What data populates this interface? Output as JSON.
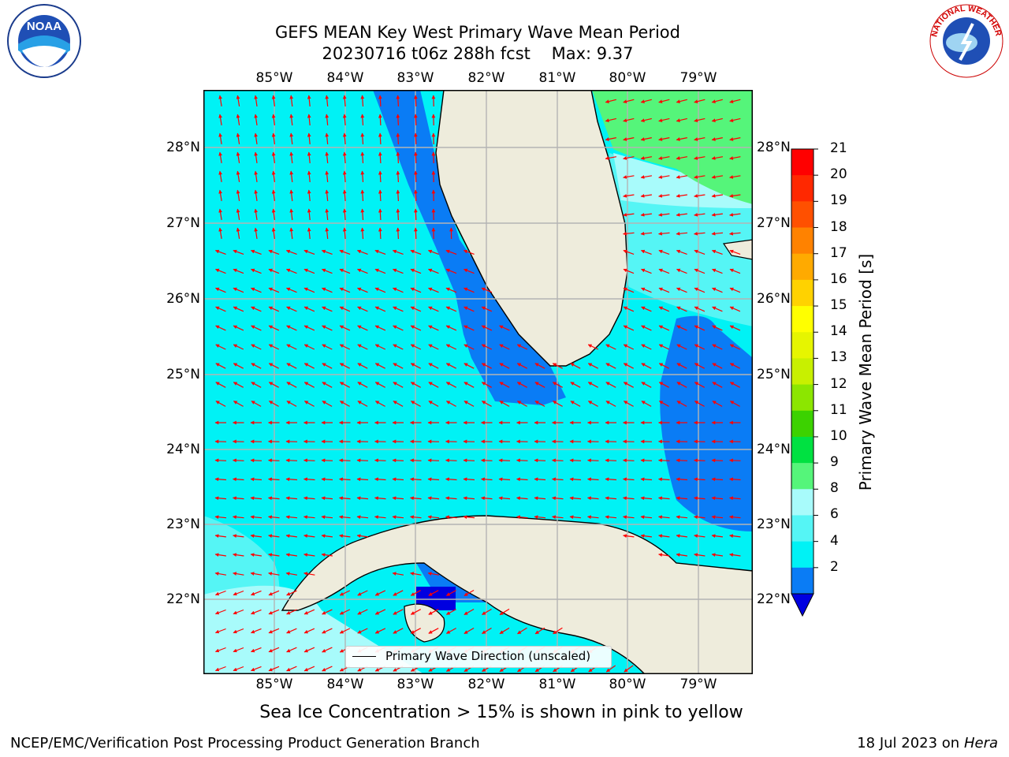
{
  "title": {
    "line1": "GEFS MEAN Key West Primary Wave Mean Period",
    "line2": "20230716 t06z 288h fcst    Max: 9.37"
  },
  "map": {
    "lon_labels": [
      "85°W",
      "84°W",
      "83°W",
      "82°W",
      "81°W",
      "80°W",
      "79°W"
    ],
    "lat_labels": [
      "28°N",
      "27°N",
      "26°N",
      "25°N",
      "24°N",
      "23°N",
      "22°N"
    ],
    "legend": "Primary Wave Direction (unscaled)",
    "colors": {
      "land": "#eeecdc",
      "period_2_4": "#0a7cf5",
      "period_4_6": "#00f2f5",
      "period_6_8": "#55f5f5",
      "period_8_9": "#a8fbfb",
      "period_9_10": "#55f57a",
      "arrow": "#ff0000",
      "grid": "#b4b4b4"
    }
  },
  "colorbar": {
    "label": "Primary Wave Mean Period [s]",
    "ticks": [
      "21",
      "20",
      "19",
      "18",
      "17",
      "16",
      "15",
      "14",
      "13",
      "12",
      "11",
      "10",
      "9",
      "8",
      "6",
      "4",
      "2"
    ],
    "colors": [
      "#ff0000",
      "#ff2800",
      "#ff5000",
      "#ff8200",
      "#ffaa00",
      "#ffd200",
      "#ffff00",
      "#e6f500",
      "#c8f000",
      "#8ce600",
      "#3cd200",
      "#00e141",
      "#55f57a",
      "#a8fbfb",
      "#55f5f5",
      "#00f2f5",
      "#0a7cf5",
      "#0000e0"
    ]
  },
  "footer": {
    "sea_ice_note": "Sea Ice Concentration > 15% is shown in pink to yellow",
    "left": "NCEP/EMC/Verification Post Processing Product Generation Branch",
    "right_prefix": "18 Jul 2023 on",
    "right_host": "Hera"
  },
  "logos": {
    "left_icon": "noaa-logo",
    "left_text": "NOAA",
    "right_icon": "nws-logo",
    "right_text": "NATIONAL WEATHER SERVICE"
  }
}
